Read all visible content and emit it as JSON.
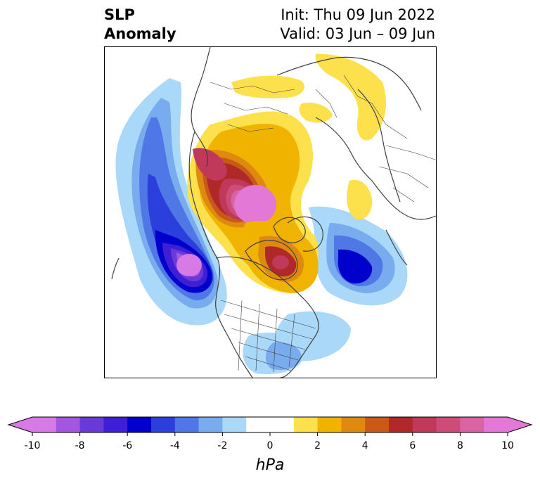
{
  "title": {
    "variable_line1": "SLP",
    "variable_line2": "Anomaly",
    "init": "Init: Thu 09 Jun 2022",
    "valid": "Valid: 03 Jun – 09 Jun"
  },
  "colorbar": {
    "unit_label": "hPa",
    "ticks": [
      "-10",
      "-8",
      "-6",
      "-4",
      "-2",
      "0",
      "2",
      "4",
      "6",
      "8",
      "10"
    ],
    "bins": [
      {
        "from": -10,
        "to": -9,
        "color": "#d87ae6"
      },
      {
        "from": -9,
        "to": -8,
        "color": "#a356de"
      },
      {
        "from": -8,
        "to": -7,
        "color": "#6a3ad9"
      },
      {
        "from": -7,
        "to": -6,
        "color": "#3e1fd6"
      },
      {
        "from": -6,
        "to": -5,
        "color": "#0000cc"
      },
      {
        "from": -5,
        "to": -4,
        "color": "#2b3fdc"
      },
      {
        "from": -4,
        "to": -3,
        "color": "#4f78e6"
      },
      {
        "from": -3,
        "to": -2,
        "color": "#78acef"
      },
      {
        "from": -2,
        "to": -1,
        "color": "#aad8f8"
      },
      {
        "from": -1,
        "to": 1,
        "color": "#ffffff"
      },
      {
        "from": 1,
        "to": 2,
        "color": "#fce04c"
      },
      {
        "from": 2,
        "to": 3,
        "color": "#f0b300"
      },
      {
        "from": 3,
        "to": 4,
        "color": "#de8a10"
      },
      {
        "from": 4,
        "to": 5,
        "color": "#c85a18"
      },
      {
        "from": 5,
        "to": 6,
        "color": "#b02828"
      },
      {
        "from": 6,
        "to": 7,
        "color": "#c0385a"
      },
      {
        "from": 7,
        "to": 8,
        "color": "#cc4c7a"
      },
      {
        "from": 8,
        "to": 9,
        "color": "#d864a4"
      },
      {
        "from": 9,
        "to": 10,
        "color": "#e478d6"
      }
    ],
    "extend": "both"
  }
}
